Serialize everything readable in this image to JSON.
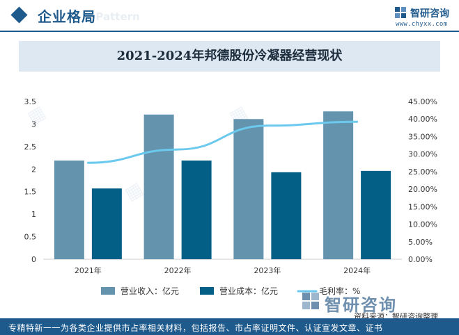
{
  "header": {
    "title": "企业格局",
    "ghost_text": "e Pattern",
    "brand_name": "智研咨询",
    "brand_url": "www.chyxx.com"
  },
  "chart_data": {
    "type": "bar",
    "title": "2021-2024年邦德股份冷凝器经营现状",
    "categories": [
      "2021年",
      "2022年",
      "2023年",
      "2024年"
    ],
    "series": [
      {
        "name": "营业收入：亿元",
        "type": "bar",
        "axis": "left",
        "color": "#6494ad",
        "values": [
          2.19,
          3.21,
          3.11,
          3.28
        ]
      },
      {
        "name": "营业成本：亿元",
        "type": "bar",
        "axis": "left",
        "color": "#035f86",
        "values": [
          1.57,
          2.19,
          1.93,
          1.96
        ]
      },
      {
        "name": "毛利率：%",
        "type": "line",
        "axis": "right",
        "color": "#6cc9ee",
        "values": [
          27.5,
          31.3,
          38.1,
          39.2
        ]
      }
    ],
    "y_left": {
      "min": 0,
      "max": 3.5,
      "ticks": [
        "0",
        "0.5",
        "1",
        "1.5",
        "2",
        "2.5",
        "3",
        "3.5"
      ]
    },
    "y_right": {
      "min": 0,
      "max": 45,
      "ticks": [
        "0.00%",
        "5.00%",
        "10.00%",
        "15.00%",
        "20.00%",
        "25.00%",
        "30.00%",
        "35.00%",
        "40.00%",
        "45.00%"
      ]
    },
    "grid": false,
    "legend": "bottom"
  },
  "footer": {
    "brand": "智研咨询",
    "source": "资料来源：智研咨询整理",
    "tagline": "专精特新一一为各类企业提供市占率相关材料，包括报告、市占率证明文件、认证宣发文章、证书"
  }
}
